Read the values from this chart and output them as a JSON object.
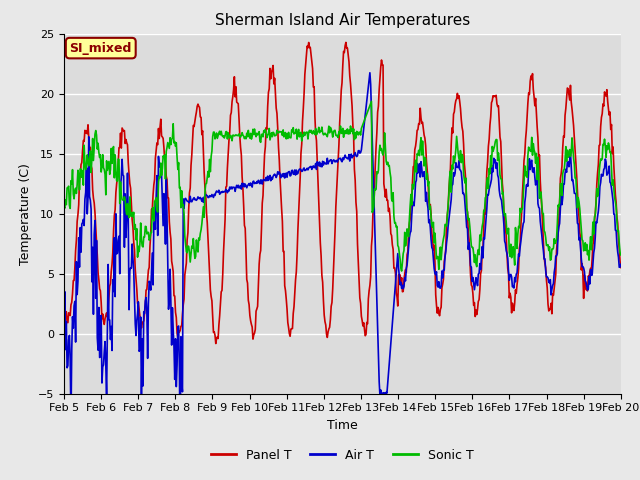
{
  "title": "Sherman Island Air Temperatures",
  "xlabel": "Time",
  "ylabel": "Temperature (C)",
  "ylim": [
    -5,
    25
  ],
  "xlim_days": [
    0,
    15
  ],
  "background_color": "#dcdcdc",
  "fig_color": "#e8e8e8",
  "annotation_label": "SI_mixed",
  "annotation_color": "#8B0000",
  "annotation_bg": "#ffff99",
  "tick_labels": [
    "Feb 5",
    "Feb 6",
    "Feb 7",
    "Feb 8",
    "Feb 9",
    "Feb 10",
    "Feb 11",
    "Feb 12",
    "Feb 13",
    "Feb 14",
    "Feb 15",
    "Feb 16",
    "Feb 17",
    "Feb 18",
    "Feb 19",
    "Feb 20"
  ],
  "line_colors": {
    "panel_t": "#cc0000",
    "air_t": "#0000cc",
    "sonic_t": "#00bb00"
  },
  "line_widths": {
    "panel_t": 1.2,
    "air_t": 1.2,
    "sonic_t": 1.2
  },
  "legend_labels": [
    "Panel T",
    "Air T",
    "Sonic T"
  ]
}
